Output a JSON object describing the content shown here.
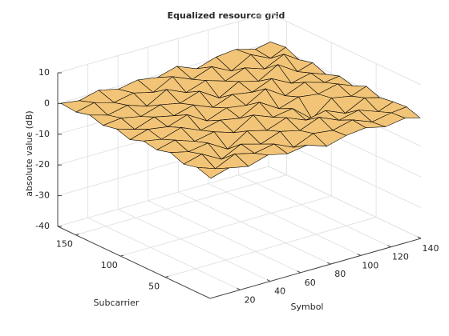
{
  "chart_data": {
    "type": "surface",
    "title": "Equalized resource grid",
    "xlabel": "Symbol",
    "ylabel": "Subcarrier",
    "zlabel": "absolute value (dB)",
    "x": [
      1,
      13,
      26,
      39,
      52,
      65,
      78,
      91,
      104,
      117,
      130,
      140
    ],
    "y": [
      1,
      16,
      31,
      46,
      61,
      76,
      91,
      106,
      121,
      136,
      151,
      168
    ],
    "z": [
      [
        -1.2,
        0.5,
        -0.8,
        1.1,
        -0.3,
        0.7,
        -1.5,
        0.2,
        0.9,
        -0.6,
        0.4,
        -0.9
      ],
      [
        0.3,
        -1.8,
        1.2,
        -0.4,
        0.8,
        -2.1,
        0.6,
        -0.2,
        1.4,
        -1.1,
        0.1,
        0.6
      ],
      [
        -0.7,
        0.9,
        -2.6,
        0.5,
        -1.3,
        1.0,
        -0.5,
        2.0,
        -0.8,
        0.7,
        -1.6,
        0.2
      ],
      [
        1.0,
        -0.4,
        0.6,
        -3.2,
        0.9,
        -0.7,
        1.6,
        -1.0,
        0.3,
        -2.4,
        0.8,
        -0.5
      ],
      [
        -0.2,
        1.3,
        -0.9,
        0.4,
        -1.7,
        2.2,
        -0.3,
        0.7,
        -4.5,
        0.5,
        -0.7,
        1.1
      ],
      [
        0.6,
        -0.5,
        1.5,
        -1.2,
        0.3,
        -0.9,
        2.5,
        -1.4,
        0.6,
        -0.3,
        1.2,
        -0.8
      ],
      [
        -1.0,
        0.7,
        -0.3,
        1.8,
        -2.0,
        0.4,
        -0.6,
        3.0,
        -1.1,
        1.5,
        -0.4,
        0.3
      ],
      [
        0.4,
        -1.4,
        0.8,
        -0.6,
        1.1,
        -1.5,
        0.9,
        -0.2,
        2.4,
        -0.9,
        0.6,
        -1.2
      ],
      [
        -0.5,
        0.2,
        -1.1,
        0.9,
        -0.4,
        1.7,
        -2.3,
        1.2,
        -0.5,
        3.1,
        -1.0,
        0.5
      ],
      [
        0.8,
        -0.9,
        0.5,
        -1.6,
        2.0,
        -0.8,
        1.3,
        -0.7,
        1.8,
        -0.4,
        2.6,
        -0.6
      ],
      [
        -0.3,
        1.1,
        -0.7,
        0.6,
        -1.0,
        2.3,
        -0.4,
        1.9,
        -1.3,
        2.2,
        -0.8,
        1.4
      ],
      [
        0.2,
        -0.6,
        1.0,
        -0.5,
        0.7,
        -0.3,
        1.5,
        -1.1,
        0.9,
        1.6,
        -0.2,
        0.8
      ]
    ],
    "xlim": [
      0,
      140
    ],
    "ylim": [
      0,
      170
    ],
    "zlim": [
      -40,
      10
    ],
    "xticks": [
      20,
      40,
      60,
      80,
      100,
      120,
      140
    ],
    "yticks": [
      50,
      100,
      150
    ],
    "zticks": [
      -40,
      -30,
      -20,
      -10,
      0,
      10
    ],
    "color": "#f2c477",
    "edgecolor": "#000000",
    "grid": true
  }
}
